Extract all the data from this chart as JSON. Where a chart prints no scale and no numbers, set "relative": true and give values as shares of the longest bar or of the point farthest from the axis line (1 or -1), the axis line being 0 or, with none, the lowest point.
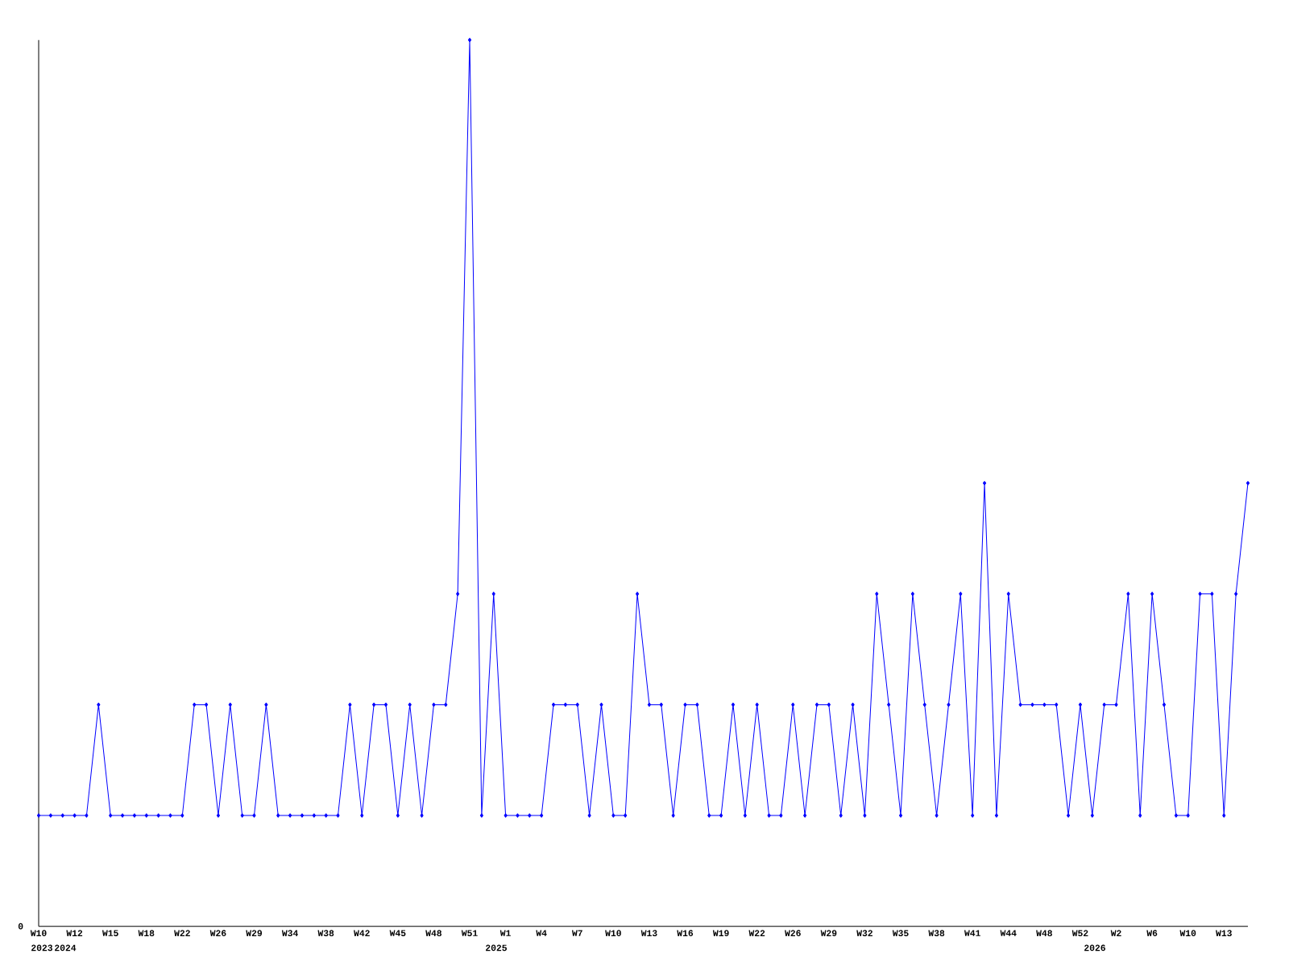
{
  "chart_data": {
    "type": "line",
    "relative": true,
    "color": "#0000ff",
    "marker": "diamond",
    "line_style": "solid",
    "categories": [
      "W10",
      null,
      null,
      "W12",
      null,
      null,
      "W15",
      null,
      null,
      "W18",
      null,
      null,
      "W22",
      null,
      null,
      "W26",
      null,
      null,
      "W29",
      null,
      null,
      "W34",
      null,
      null,
      "W38",
      null,
      null,
      "W42",
      null,
      null,
      "W45",
      null,
      null,
      "W48",
      null,
      null,
      "W51",
      null,
      null,
      "W1",
      null,
      null,
      "W4",
      null,
      null,
      "W7",
      null,
      null,
      "W10",
      null,
      null,
      "W13",
      null,
      null,
      "W16",
      null,
      null,
      "W19",
      null,
      null,
      "W22",
      null,
      null,
      "W26",
      null,
      null,
      "W29",
      null,
      null,
      "W32",
      null,
      null,
      "W35",
      null,
      null,
      "W38",
      null,
      null,
      "W41",
      null,
      null,
      "W44",
      null,
      null,
      "W48",
      null,
      null,
      "W52",
      null,
      null,
      "W2",
      null,
      null,
      "W6",
      null,
      null,
      "W10",
      null,
      null,
      "W13",
      null,
      null
    ],
    "values": [
      0.125,
      0.125,
      0.125,
      0.125,
      0.125,
      0.25,
      0.125,
      0.125,
      0.125,
      0.125,
      0.125,
      0.125,
      0.125,
      0.25,
      0.25,
      0.125,
      0.25,
      0.125,
      0.125,
      0.25,
      0.125,
      0.125,
      0.125,
      0.125,
      0.125,
      0.125,
      0.25,
      0.125,
      0.25,
      0.25,
      0.125,
      0.25,
      0.125,
      0.25,
      0.25,
      0.375,
      1,
      0.125,
      0.375,
      0.125,
      0.125,
      0.125,
      0.125,
      0.25,
      0.25,
      0.25,
      0.125,
      0.25,
      0.125,
      0.125,
      0.375,
      0.25,
      0.25,
      0.125,
      0.25,
      0.25,
      0.125,
      0.125,
      0.25,
      0.125,
      0.25,
      0.125,
      0.125,
      0.25,
      0.125,
      0.25,
      0.25,
      0.125,
      0.25,
      0.125,
      0.375,
      0.25,
      0.125,
      0.375,
      0.25,
      0.125,
      0.25,
      0.375,
      0.125,
      0.5,
      0.125,
      0.375,
      0.25,
      0.25,
      0.25,
      0.25,
      0.125,
      0.25,
      0.125,
      0.25,
      0.25,
      0.375,
      0.125,
      0.375,
      0.25,
      0.125,
      0.125,
      0.375,
      0.375,
      0.125,
      0.375,
      0.5
    ],
    "annotations": [
      "0",
      "2023",
      "2024",
      "2025",
      "2026"
    ]
  }
}
